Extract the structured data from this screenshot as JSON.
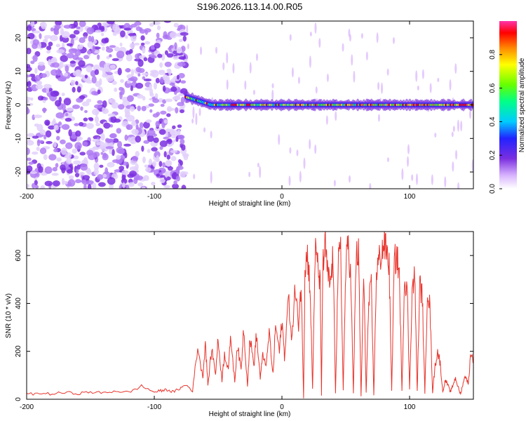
{
  "figure_title": "S196.2026.113.14.00.R05",
  "chart_data": [
    {
      "type": "heatmap",
      "title": "S196.2026.113.14.00.R05",
      "xlabel": "Height of straight line (km)",
      "ylabel": "Frequency (Hz)",
      "xlim": [
        -200,
        150
      ],
      "ylim": [
        -25,
        25
      ],
      "xticks": [
        -200,
        -100,
        0,
        100
      ],
      "yticks": [
        -20,
        -10,
        0,
        10,
        20
      ],
      "xtick_labels": [
        "-200",
        "-100",
        "0",
        "100"
      ],
      "ytick_labels": [
        "-20",
        "-10",
        "0",
        "10",
        "20"
      ],
      "noise_region_x": [
        -200,
        -75
      ],
      "signal_band_center_hz": 0,
      "signal_band_x": [
        -75,
        150
      ],
      "colorbar": {
        "label": "Normalized spectral amplitude",
        "range": [
          0,
          1
        ],
        "ticks": [
          0.0,
          0.2,
          0.4,
          0.6,
          0.8
        ],
        "tick_labels": [
          "0.0",
          "0.2",
          "0.4",
          "0.6",
          "0.8"
        ],
        "colors": [
          "#ffffff",
          "#d8b4fe",
          "#7b2fe0",
          "#2222ff",
          "#00ccff",
          "#00ff88",
          "#66ff00",
          "#ffff00",
          "#ff8800",
          "#ff0000",
          "#ff33aa"
        ]
      }
    },
    {
      "type": "line",
      "xlabel": "Height of straight line (km)",
      "ylabel": "SNR (10 * v/v)",
      "xlim": [
        -200,
        150
      ],
      "ylim": [
        0,
        700
      ],
      "xticks": [
        -200,
        -100,
        0,
        100
      ],
      "yticks": [
        0,
        200,
        400,
        600
      ],
      "xtick_labels": [
        "-200",
        "-100",
        "0",
        "100"
      ],
      "ytick_labels": [
        "0",
        "200",
        "400",
        "600"
      ],
      "line_color": "#e8342c",
      "series": [
        {
          "name": "SNR",
          "x": [
            -200,
            -190,
            -180,
            -170,
            -160,
            -150,
            -140,
            -130,
            -120,
            -110,
            -100,
            -95,
            -90,
            -85,
            -80,
            -75,
            -70,
            -66,
            -62,
            -60,
            -58,
            -55,
            -52,
            -50,
            -47,
            -45,
            -42,
            -40,
            -37,
            -35,
            -32,
            -30,
            -27,
            -25,
            -22,
            -20,
            -17,
            -15,
            -12,
            -10,
            -7,
            -5,
            -2,
            0,
            2,
            5,
            8,
            10,
            13,
            15,
            17,
            18,
            20,
            22,
            24,
            26,
            28,
            30,
            31,
            32,
            34,
            36,
            38,
            40,
            42,
            44,
            46,
            48,
            50,
            52,
            54,
            56,
            58,
            60,
            62,
            64,
            66,
            68,
            70,
            72,
            74,
            76,
            78,
            80,
            82,
            84,
            86,
            88,
            90,
            92,
            94,
            96,
            98,
            100,
            102,
            104,
            106,
            108,
            110,
            112,
            114,
            116,
            118,
            120,
            122,
            124,
            126,
            128,
            130,
            132,
            134,
            136,
            138,
            140,
            142,
            144,
            146,
            148,
            150
          ],
          "y": [
            20,
            25,
            22,
            28,
            24,
            30,
            26,
            35,
            28,
            55,
            30,
            35,
            40,
            30,
            45,
            60,
            35,
            220,
            90,
            240,
            60,
            210,
            110,
            250,
            80,
            190,
            130,
            260,
            70,
            230,
            120,
            300,
            60,
            260,
            140,
            270,
            90,
            180,
            150,
            280,
            100,
            310,
            200,
            330,
            180,
            420,
            250,
            450,
            320,
            480,
            10,
            560,
            600,
            480,
            40,
            620,
            560,
            470,
            10,
            550,
            640,
            510,
            480,
            600,
            30,
            560,
            620,
            40,
            540,
            660,
            490,
            20,
            590,
            610,
            10,
            520,
            30,
            400,
            470,
            20,
            530,
            580,
            610,
            650,
            620,
            560,
            30,
            570,
            600,
            520,
            30,
            500,
            480,
            40,
            450,
            520,
            30,
            480,
            430,
            20,
            470,
            380,
            30,
            140,
            200,
            150,
            30,
            80,
            60,
            30,
            60,
            90,
            50,
            20,
            70,
            100,
            60,
            200,
            150
          ]
        }
      ]
    }
  ]
}
